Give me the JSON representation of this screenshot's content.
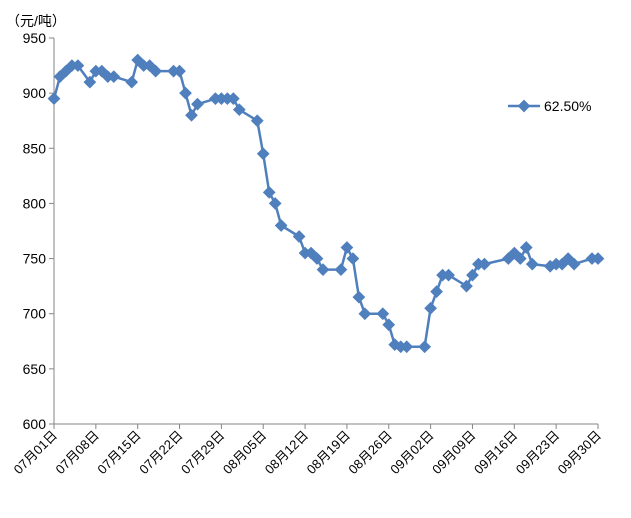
{
  "chart_data": {
    "type": "line",
    "unit_label": "（元/吨）",
    "ylim": [
      600,
      950
    ],
    "y_ticks": [
      600,
      650,
      700,
      750,
      800,
      850,
      900,
      950
    ],
    "x_range": [
      "07月01日",
      "09月30日"
    ],
    "x_tick_labels": [
      "07月01日",
      "07月08日",
      "07月15日",
      "07月22日",
      "07月29日",
      "08月05日",
      "08月12日",
      "08月19日",
      "08月26日",
      "09月02日",
      "09月09日",
      "09月16日",
      "09月23日",
      "09月30日"
    ],
    "grid": false,
    "legend_position": "top-right",
    "series_color": "#4f7fbd",
    "series": [
      {
        "name": "62.50%",
        "points": [
          [
            "07月01日",
            895
          ],
          [
            "07月02日",
            915
          ],
          [
            "07月03日",
            920
          ],
          [
            "07月04日",
            925
          ],
          [
            "07月05日",
            925
          ],
          [
            "07月07日",
            910
          ],
          [
            "07月08日",
            920
          ],
          [
            "07月09日",
            920
          ],
          [
            "07月10日",
            915
          ],
          [
            "07月11日",
            915
          ],
          [
            "07月14日",
            910
          ],
          [
            "07月15日",
            930
          ],
          [
            "07月16日",
            925
          ],
          [
            "07月17日",
            925
          ],
          [
            "07月18日",
            920
          ],
          [
            "07月21日",
            920
          ],
          [
            "07月22日",
            920
          ],
          [
            "07月23日",
            900
          ],
          [
            "07月24日",
            880
          ],
          [
            "07月25日",
            890
          ],
          [
            "07月28日",
            895
          ],
          [
            "07月29日",
            895
          ],
          [
            "07月30日",
            895
          ],
          [
            "07月31日",
            895
          ],
          [
            "08月01日",
            885
          ],
          [
            "08月04日",
            875
          ],
          [
            "08月05日",
            845
          ],
          [
            "08月06日",
            810
          ],
          [
            "08月07日",
            800
          ],
          [
            "08月08日",
            780
          ],
          [
            "08月11日",
            770
          ],
          [
            "08月12日",
            755
          ],
          [
            "08月13日",
            755
          ],
          [
            "08月14日",
            750
          ],
          [
            "08月15日",
            740
          ],
          [
            "08月18日",
            740
          ],
          [
            "08月19日",
            760
          ],
          [
            "08月20日",
            750
          ],
          [
            "08月21日",
            715
          ],
          [
            "08月22日",
            700
          ],
          [
            "08月25日",
            700
          ],
          [
            "08月26日",
            690
          ],
          [
            "08月27日",
            672
          ],
          [
            "08月28日",
            670
          ],
          [
            "08月29日",
            670
          ],
          [
            "09月01日",
            670
          ],
          [
            "09月02日",
            705
          ],
          [
            "09月03日",
            720
          ],
          [
            "09月04日",
            735
          ],
          [
            "09月05日",
            735
          ],
          [
            "09月08日",
            725
          ],
          [
            "09月09日",
            735
          ],
          [
            "09月10日",
            745
          ],
          [
            "09月11日",
            745
          ],
          [
            "09月15日",
            750
          ],
          [
            "09月16日",
            755
          ],
          [
            "09月17日",
            750
          ],
          [
            "09月18日",
            760
          ],
          [
            "09月19日",
            745
          ],
          [
            "09月22日",
            743
          ],
          [
            "09月23日",
            745
          ],
          [
            "09月24日",
            745
          ],
          [
            "09月25日",
            750
          ],
          [
            "09月26日",
            745
          ],
          [
            "09月29日",
            750
          ],
          [
            "09月30日",
            750
          ]
        ]
      }
    ]
  }
}
